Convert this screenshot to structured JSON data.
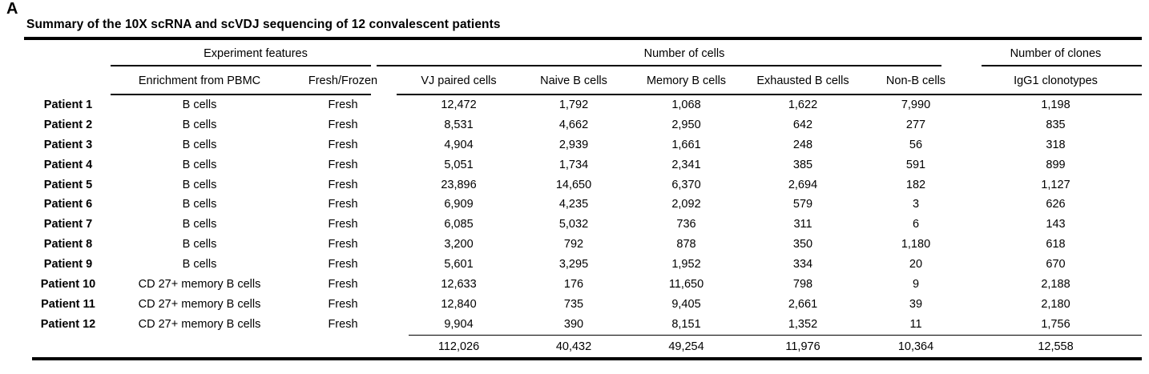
{
  "panel_label": "A",
  "title": "Summary of the 10X scRNA and scVDJ sequencing of 12 convalescent patients",
  "table": {
    "group_headers": [
      "Experiment features",
      "Number of cells",
      "Number of clones"
    ],
    "columns": [
      "",
      "Enrichment from PBMC",
      "Fresh/Frozen",
      "VJ paired cells",
      "Naive B cells",
      "Memory B cells",
      "Exhausted B cells",
      "Non-B cells",
      "IgG1 clonotypes"
    ],
    "rows": [
      {
        "patient": "Patient 1",
        "enrichment": "B cells",
        "fresh_frozen": "Fresh",
        "vj_paired": "12,472",
        "naive_b": "1,792",
        "memory_b": "1,068",
        "exhausted_b": "1,622",
        "non_b": "7,990",
        "igg1": "1,198"
      },
      {
        "patient": "Patient 2",
        "enrichment": "B cells",
        "fresh_frozen": "Fresh",
        "vj_paired": "8,531",
        "naive_b": "4,662",
        "memory_b": "2,950",
        "exhausted_b": "642",
        "non_b": "277",
        "igg1": "835"
      },
      {
        "patient": "Patient 3",
        "enrichment": "B cells",
        "fresh_frozen": "Fresh",
        "vj_paired": "4,904",
        "naive_b": "2,939",
        "memory_b": "1,661",
        "exhausted_b": "248",
        "non_b": "56",
        "igg1": "318"
      },
      {
        "patient": "Patient 4",
        "enrichment": "B cells",
        "fresh_frozen": "Fresh",
        "vj_paired": "5,051",
        "naive_b": "1,734",
        "memory_b": "2,341",
        "exhausted_b": "385",
        "non_b": "591",
        "igg1": "899"
      },
      {
        "patient": "Patient 5",
        "enrichment": "B cells",
        "fresh_frozen": "Fresh",
        "vj_paired": "23,896",
        "naive_b": "14,650",
        "memory_b": "6,370",
        "exhausted_b": "2,694",
        "non_b": "182",
        "igg1": "1,127"
      },
      {
        "patient": "Patient 6",
        "enrichment": "B cells",
        "fresh_frozen": "Fresh",
        "vj_paired": "6,909",
        "naive_b": "4,235",
        "memory_b": "2,092",
        "exhausted_b": "579",
        "non_b": "3",
        "igg1": "626"
      },
      {
        "patient": "Patient 7",
        "enrichment": "B cells",
        "fresh_frozen": "Fresh",
        "vj_paired": "6,085",
        "naive_b": "5,032",
        "memory_b": "736",
        "exhausted_b": "311",
        "non_b": "6",
        "igg1": "143"
      },
      {
        "patient": "Patient 8",
        "enrichment": "B cells",
        "fresh_frozen": "Fresh",
        "vj_paired": "3,200",
        "naive_b": "792",
        "memory_b": "878",
        "exhausted_b": "350",
        "non_b": "1,180",
        "igg1": "618"
      },
      {
        "patient": "Patient 9",
        "enrichment": "B cells",
        "fresh_frozen": "Fresh",
        "vj_paired": "5,601",
        "naive_b": "3,295",
        "memory_b": "1,952",
        "exhausted_b": "334",
        "non_b": "20",
        "igg1": "670"
      },
      {
        "patient": "Patient 10",
        "enrichment": "CD 27+ memory B cells",
        "fresh_frozen": "Fresh",
        "vj_paired": "12,633",
        "naive_b": "176",
        "memory_b": "11,650",
        "exhausted_b": "798",
        "non_b": "9",
        "igg1": "2,188"
      },
      {
        "patient": "Patient 11",
        "enrichment": "CD 27+ memory B cells",
        "fresh_frozen": "Fresh",
        "vj_paired": "12,840",
        "naive_b": "735",
        "memory_b": "9,405",
        "exhausted_b": "2,661",
        "non_b": "39",
        "igg1": "2,180"
      },
      {
        "patient": "Patient 12",
        "enrichment": "CD 27+ memory B cells",
        "fresh_frozen": "Fresh",
        "vj_paired": "9,904",
        "naive_b": "390",
        "memory_b": "8,151",
        "exhausted_b": "1,352",
        "non_b": "11",
        "igg1": "1,756"
      }
    ],
    "totals": {
      "patient": "",
      "enrichment": "",
      "fresh_frozen": "",
      "vj_paired": "112,026",
      "naive_b": "40,432",
      "memory_b": "49,254",
      "exhausted_b": "11,976",
      "non_b": "10,364",
      "igg1": "12,558"
    }
  },
  "colors": {
    "text": "#000000",
    "background": "#ffffff",
    "rule": "#000000"
  }
}
